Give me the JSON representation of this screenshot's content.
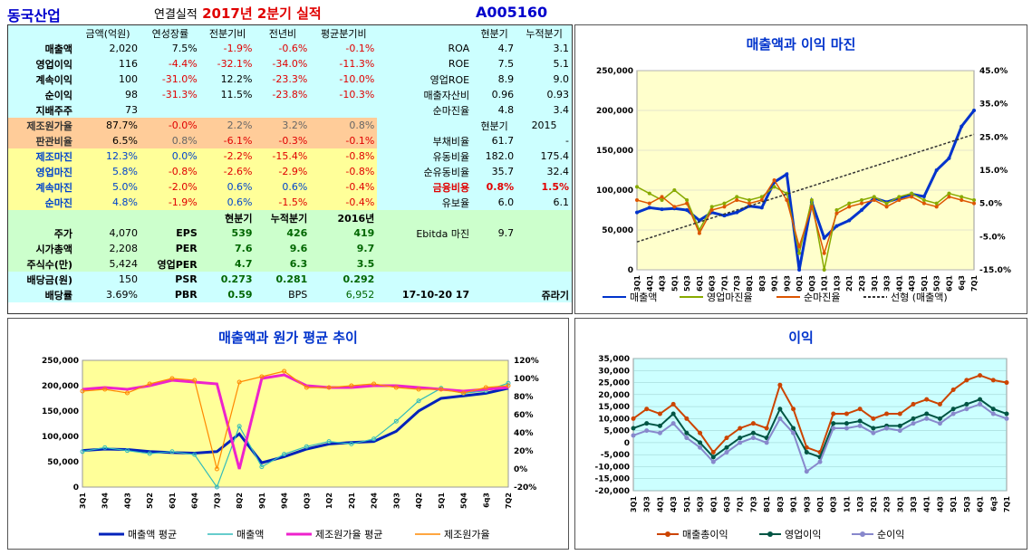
{
  "header": {
    "company": "동국산업",
    "subtitle_prefix": "연결실적",
    "subtitle_period": "2017년 2분기 실적",
    "code": "A005160"
  },
  "left_table": {
    "col_headers": [
      "금액(억원)",
      "연성장률",
      "전분기비",
      "전년비",
      "평균분기비"
    ],
    "rows": [
      {
        "label": "매출액",
        "values": [
          "2,020",
          "7.5%",
          "-1.9%",
          "-0.6%",
          "-0.1%"
        ]
      },
      {
        "label": "영업이익",
        "values": [
          "116",
          "-4.4%",
          "-32.1%",
          "-34.0%",
          "-11.3%"
        ]
      },
      {
        "label": "계속이익",
        "values": [
          "100",
          "-31.0%",
          "12.2%",
          "-23.3%",
          "-10.0%"
        ]
      },
      {
        "label": "순이익",
        "values": [
          "98",
          "-31.3%",
          "11.5%",
          "-23.8%",
          "-10.3%"
        ]
      },
      {
        "label": "지배주주",
        "values": [
          "73",
          "",
          "",
          "",
          ""
        ]
      }
    ],
    "cost_rows": [
      {
        "label": "제조원가율",
        "values": [
          "87.7%",
          "-0.0%",
          "2.2%",
          "3.2%",
          "0.8%"
        ]
      },
      {
        "label": "판관비율",
        "values": [
          "6.5%",
          "0.8%",
          "-6.1%",
          "-0.3%",
          "-0.1%"
        ]
      }
    ],
    "margin_rows": [
      {
        "label": "제조마진",
        "values": [
          "12.3%",
          "0.0%",
          "-2.2%",
          "-15.4%",
          "-0.8%"
        ]
      },
      {
        "label": "영업마진",
        "values": [
          "5.8%",
          "-0.8%",
          "-2.6%",
          "-2.9%",
          "-0.8%"
        ]
      },
      {
        "label": "계속마진",
        "values": [
          "5.0%",
          "-2.0%",
          "0.6%",
          "0.6%",
          "-0.4%"
        ]
      },
      {
        "label": "순마진",
        "values": [
          "4.8%",
          "-1.9%",
          "0.6%",
          "-1.5%",
          "-0.4%"
        ]
      }
    ]
  },
  "right_table": {
    "col_headers": [
      "현분기",
      "누적분기"
    ],
    "rows": [
      {
        "label": "ROA",
        "values": [
          "4.7",
          "3.1"
        ]
      },
      {
        "label": "ROE",
        "values": [
          "7.5",
          "5.1"
        ]
      },
      {
        "label": "영업ROE",
        "values": [
          "8.9",
          "9.0"
        ]
      },
      {
        "label": "매출자산비",
        "values": [
          "0.96",
          "0.93"
        ]
      },
      {
        "label": "순마진율",
        "values": [
          "4.8",
          "3.4"
        ]
      }
    ],
    "col_headers2": [
      "현분기",
      "2015"
    ],
    "rows2": [
      {
        "label": "부채비율",
        "values": [
          "61.7",
          "-"
        ]
      },
      {
        "label": "유동비율",
        "values": [
          "182.0",
          "175.4"
        ]
      },
      {
        "label": "순유동비율",
        "values": [
          "35.7",
          "32.4"
        ]
      },
      {
        "label": "금융비용",
        "values": [
          "0.8%",
          "1.5%"
        ]
      },
      {
        "label": "유보율",
        "values": [
          "6.0",
          "6.1"
        ]
      }
    ]
  },
  "valuation": {
    "col_headers": [
      "현분기",
      "누적분기",
      "2016년"
    ],
    "left": [
      {
        "label": "주가",
        "value": "4,070"
      },
      {
        "label": "시가총액",
        "value": "2,208"
      },
      {
        "label": "주식수(만)",
        "value": "5,424"
      },
      {
        "label": "배당금(원)",
        "value": "150"
      },
      {
        "label": "배당률",
        "value": "3.69%"
      }
    ],
    "mid": [
      {
        "label": "EPS",
        "values": [
          "539",
          "426",
          "419"
        ]
      },
      {
        "label": "PER",
        "values": [
          "7.6",
          "9.6",
          "9.7"
        ]
      },
      {
        "label": "영업PER",
        "values": [
          "4.7",
          "6.3",
          "3.5"
        ]
      },
      {
        "label": "PSR",
        "values": [
          "0.273",
          "0.281",
          "0.292"
        ]
      },
      {
        "label": "PBR",
        "values": [
          "0.59"
        ]
      },
      {
        "label": "BPS",
        "values": [
          "6,952"
        ]
      }
    ],
    "ebitda_label": "Ebitda 마진",
    "ebitda_value": "9.7",
    "date": "17-10-20 17",
    "footer": "쥬라기"
  },
  "chart_data": [
    {
      "type": "line",
      "title": "매출액과 이익 마진",
      "x": [
        "3Q1",
        "4Q1",
        "4Q3",
        "5Q1",
        "5Q3",
        "6Q1",
        "6Q3",
        "7Q1",
        "7Q3",
        "8Q1",
        "8Q3",
        "9Q1",
        "9Q3",
        "0Q1",
        "0Q3",
        "1Q1",
        "1Q3",
        "2Q1",
        "2Q3",
        "3Q1",
        "3Q3",
        "4Q1",
        "4Q3",
        "5Q1",
        "5Q3",
        "6Q1",
        "6q3",
        "7Q1"
      ],
      "yticks_left": [
        "250,000",
        "200,000",
        "150,000",
        "100,000",
        "50,000",
        "0"
      ],
      "yticks_right": [
        "45.0%",
        "35.0%",
        "25.0%",
        "15.0%",
        "5.0%",
        "-5.0%",
        "-15.0%"
      ],
      "ylim_left": [
        0,
        250000
      ],
      "ylim_right": [
        -15,
        45
      ],
      "series": [
        {
          "name": "매출액",
          "axis": "left",
          "color": "#0033cc",
          "values": [
            72000,
            78000,
            76000,
            77000,
            75000,
            62000,
            72000,
            68000,
            72000,
            80000,
            78000,
            110000,
            120000,
            0,
            85000,
            40000,
            55000,
            62000,
            75000,
            90000,
            85000,
            90000,
            95000,
            92000,
            125000,
            140000,
            180000,
            200000
          ]
        },
        {
          "name": "영업마진율",
          "axis": "right",
          "color": "#88aa00",
          "values": [
            10,
            8,
            6,
            9,
            6,
            -3,
            4,
            5,
            7,
            6,
            7,
            10,
            8,
            -10,
            6,
            -15,
            3,
            5,
            6,
            7,
            5,
            7,
            8,
            6,
            5,
            8,
            7,
            6
          ]
        },
        {
          "name": "순마진율",
          "axis": "right",
          "color": "#dd5500",
          "values": [
            6,
            5,
            7,
            4,
            5,
            -4,
            3,
            4,
            6,
            5,
            6,
            12,
            6,
            -8,
            4,
            -10,
            2,
            4,
            5,
            6,
            4,
            6,
            7,
            5,
            4,
            7,
            6,
            5
          ]
        },
        {
          "name": "선형 (매출액)",
          "axis": "left",
          "color": "#333333",
          "values": [
            35000,
            40000,
            45000,
            50000,
            55000,
            60000,
            65000,
            70000,
            75000,
            80000,
            85000,
            90000,
            95000,
            100000,
            105000,
            110000,
            115000,
            120000,
            125000,
            130000,
            135000,
            140000,
            145000,
            150000,
            155000,
            160000,
            165000,
            170000
          ]
        }
      ]
    },
    {
      "type": "line",
      "title": "매출액과 원가 평균 추이",
      "x": [
        "3Q1",
        "3Q4",
        "4Q3",
        "5Q2",
        "6Q1",
        "6Q4",
        "7Q3",
        "8Q2",
        "9Q1",
        "9Q4",
        "0Q3",
        "1Q2",
        "2Q1",
        "2Q4",
        "3Q3",
        "4Q2",
        "5Q1",
        "5Q4",
        "6q3",
        "7Q2"
      ],
      "yticks_left": [
        "250,000",
        "200,000",
        "150,000",
        "100,000",
        "50,000",
        "0"
      ],
      "yticks_right": [
        "120%",
        "100%",
        "80%",
        "60%",
        "40%",
        "20%",
        "0%",
        "-20%"
      ],
      "ylim_left": [
        0,
        250000
      ],
      "ylim_right": [
        -20,
        120
      ],
      "series": [
        {
          "name": "매출액 평균",
          "axis": "left",
          "color": "#0022bb",
          "values": [
            72000,
            75000,
            74000,
            70000,
            68000,
            67000,
            70000,
            105000,
            48000,
            60000,
            75000,
            85000,
            88000,
            90000,
            110000,
            150000,
            175000,
            180000,
            185000,
            195000
          ]
        },
        {
          "name": "매출액",
          "axis": "left",
          "color": "#33bbbb",
          "values": [
            70000,
            78000,
            72000,
            66000,
            70000,
            64000,
            0,
            120000,
            40000,
            65000,
            80000,
            90000,
            85000,
            95000,
            130000,
            170000,
            195000,
            185000,
            190000,
            205000
          ]
        },
        {
          "name": "제조원가율 평균",
          "axis": "right",
          "color": "#ee22cc",
          "values": [
            88,
            90,
            88,
            92,
            98,
            96,
            94,
            0,
            100,
            104,
            92,
            90,
            90,
            92,
            92,
            90,
            88,
            86,
            88,
            90
          ]
        },
        {
          "name": "제조원가율",
          "axis": "right",
          "color": "#ff8800",
          "values": [
            86,
            88,
            84,
            94,
            100,
            98,
            0,
            96,
            102,
            108,
            90,
            90,
            92,
            94,
            90,
            88,
            88,
            84,
            90,
            92
          ]
        }
      ]
    },
    {
      "type": "line",
      "title": "이익",
      "x": [
        "3Q1",
        "3Q3",
        "4Q1",
        "4Q3",
        "5Q1",
        "5Q3",
        "6Q1",
        "6Q3",
        "7Q1",
        "7Q3",
        "8Q1",
        "8Q3",
        "9Q1",
        "9Q3",
        "0Q1",
        "0Q3",
        "1Q1",
        "1Q3",
        "2Q1",
        "2Q3",
        "3Q1",
        "3Q3",
        "4Q1",
        "4Q3",
        "5Q1",
        "5Q3",
        "6Q1",
        "6q3",
        "7Q1"
      ],
      "yticks": [
        "35,000",
        "30,000",
        "25,000",
        "20,000",
        "15,000",
        "10,000",
        "5,000",
        "0",
        "-5,000",
        "-10,000",
        "-15,000",
        "-20,000"
      ],
      "ylim": [
        -20000,
        35000
      ],
      "series": [
        {
          "name": "매출총이익",
          "color": "#cc4400",
          "values": [
            10000,
            14000,
            12000,
            16000,
            10000,
            4000,
            -4000,
            2000,
            6000,
            8000,
            6000,
            24000,
            14000,
            -2000,
            -4000,
            12000,
            12000,
            14000,
            10000,
            12000,
            12000,
            16000,
            18000,
            16000,
            22000,
            26000,
            28000,
            26000,
            25000
          ]
        },
        {
          "name": "영업이익",
          "color": "#005544",
          "values": [
            6000,
            8000,
            7000,
            12000,
            4000,
            0,
            -6000,
            -2000,
            2000,
            4000,
            2000,
            14000,
            6000,
            -4000,
            -6000,
            8000,
            8000,
            9000,
            6000,
            7000,
            7000,
            10000,
            12000,
            10000,
            14000,
            16000,
            18000,
            14000,
            12000
          ]
        },
        {
          "name": "순이익",
          "color": "#8888cc",
          "values": [
            3000,
            5000,
            4000,
            8000,
            2000,
            -2000,
            -8000,
            -4000,
            0,
            2000,
            0,
            10000,
            4000,
            -12000,
            -8000,
            6000,
            6000,
            7000,
            4000,
            6000,
            5000,
            8000,
            10000,
            8000,
            12000,
            14000,
            16000,
            12000,
            10000
          ]
        }
      ]
    }
  ]
}
